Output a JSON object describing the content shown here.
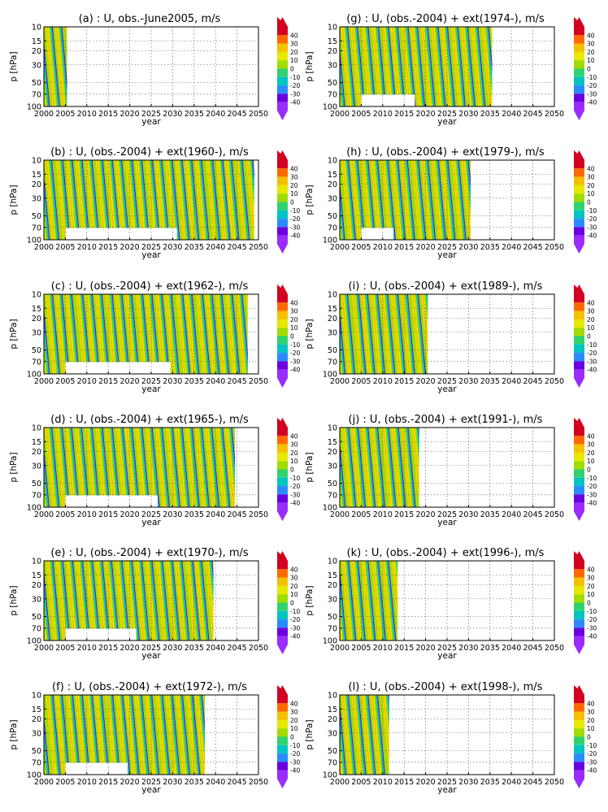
{
  "chart_data": {
    "type": "heatmap",
    "variable": "U",
    "unit": "m/s",
    "xlabel": "year",
    "ylabel": "p [hPa]",
    "xlim": [
      2000,
      2050
    ],
    "x_ticks": [
      "2000",
      "2005",
      "2010",
      "2015",
      "2020",
      "2025",
      "2030",
      "2035",
      "2040",
      "2045",
      "2050"
    ],
    "y_ticks": [
      "10",
      "15",
      "20",
      "30",
      "50",
      "70",
      "100"
    ],
    "y_scale": "log",
    "ylim": [
      100,
      10
    ],
    "grid": true,
    "colorbar": {
      "ticks": [
        "40",
        "30",
        "20",
        "10",
        "0",
        "-10",
        "-20",
        "-30",
        "-40"
      ],
      "colors": [
        "#d40020",
        "#ff6a00",
        "#f5c000",
        "#e8e800",
        "#a0dc00",
        "#2fd26f",
        "#00c4c4",
        "#2a8bff",
        "#6a00e0",
        "#9a2cff"
      ]
    },
    "panels": [
      {
        "id": "a",
        "title": "(a) : U, obs.-June2005, m/s",
        "data_end": 2005.4,
        "ext_start": null,
        "ext_gap_end": null
      },
      {
        "id": "b",
        "title": "(b) : U, (obs.-2004) + ext(1960-), m/s",
        "data_end": 2049,
        "ext_start": 2005,
        "ext_gap_end": 2031
      },
      {
        "id": "c",
        "title": "(c) : U, (obs.-2004) + ext(1962-), m/s",
        "data_end": 2047.5,
        "ext_start": 2005,
        "ext_gap_end": 2029.5
      },
      {
        "id": "d",
        "title": "(d) : U, (obs.-2004) + ext(1965-), m/s",
        "data_end": 2044.5,
        "ext_start": 2005,
        "ext_gap_end": 2026.5
      },
      {
        "id": "e",
        "title": "(e) : U, (obs.-2004) + ext(1970-), m/s",
        "data_end": 2039.5,
        "ext_start": 2005,
        "ext_gap_end": 2021.5
      },
      {
        "id": "f",
        "title": "(f) : U, (obs.-2004) + ext(1972-), m/s",
        "data_end": 2037.5,
        "ext_start": 2005,
        "ext_gap_end": 2019.5
      },
      {
        "id": "g",
        "title": "(g) : U, (obs.-2004) + ext(1974-), m/s",
        "data_end": 2035.5,
        "ext_start": 2005,
        "ext_gap_end": 2017.5
      },
      {
        "id": "h",
        "title": "(h) : U, (obs.-2004) + ext(1979-), m/s",
        "data_end": 2030.5,
        "ext_start": 2005,
        "ext_gap_end": 2012.5
      },
      {
        "id": "i",
        "title": "(i) : U, (obs.-2004) + ext(1989-), m/s",
        "data_end": 2020.5,
        "ext_start": null,
        "ext_gap_end": null
      },
      {
        "id": "j",
        "title": "(j) : U, (obs.-2004) + ext(1991-), m/s",
        "data_end": 2018.5,
        "ext_start": null,
        "ext_gap_end": null
      },
      {
        "id": "k",
        "title": "(k) : U, (obs.-2004) + ext(1996-), m/s",
        "data_end": 2013.5,
        "ext_start": null,
        "ext_gap_end": null
      },
      {
        "id": "l",
        "title": "(l) : U, (obs.-2004) + ext(1998-), m/s",
        "data_end": 2011.5,
        "ext_start": null,
        "ext_gap_end": null
      }
    ]
  }
}
